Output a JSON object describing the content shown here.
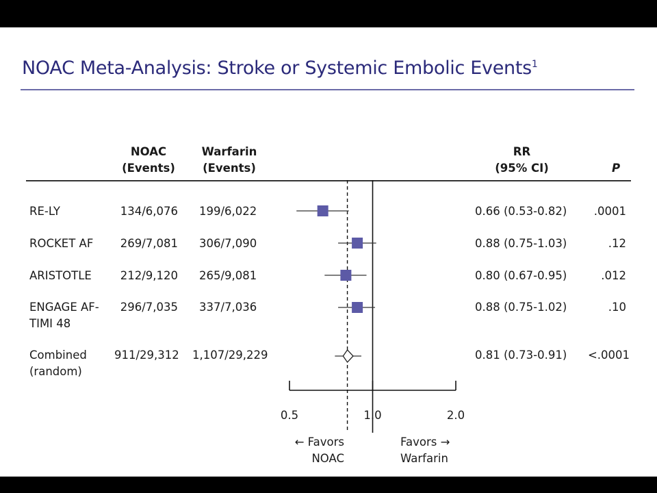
{
  "title": "NOAC Meta-Analysis: Stroke or Systemic Embolic Events",
  "title_sup": "1",
  "headers": {
    "noac_line1": "NOAC",
    "noac_line2": "(Events)",
    "warfarin_line1": "Warfarin",
    "warfarin_line2": "(Events)",
    "rr_line1": "RR",
    "rr_line2": "(95% CI)",
    "p": "P"
  },
  "chart_data": {
    "type": "forest",
    "scale": "log",
    "reference_line": 1.0,
    "pooled_line": 0.81,
    "xlim": [
      0.5,
      2.0
    ],
    "xticks": [
      "0.5",
      "1.0",
      "2.0"
    ],
    "left_label": "← Favors NOAC",
    "right_label": "Favors → Warfarin",
    "rows": [
      {
        "study": "RE-LY",
        "noac": "134/6,076",
        "warfarin": "199/6,022",
        "rr": 0.66,
        "lo": 0.53,
        "hi": 0.82,
        "rr_text": "0.66 (0.53-0.82)",
        "p": ".0001",
        "marker": "square"
      },
      {
        "study": "ROCKET AF",
        "noac": "269/7,081",
        "warfarin": "306/7,090",
        "rr": 0.88,
        "lo": 0.75,
        "hi": 1.03,
        "rr_text": "0.88 (0.75-1.03)",
        "p": ".12",
        "marker": "square"
      },
      {
        "study": "ARISTOTLE",
        "noac": "212/9,120",
        "warfarin": "265/9,081",
        "rr": 0.8,
        "lo": 0.67,
        "hi": 0.95,
        "rr_text": "0.80 (0.67-0.95)",
        "p": ".012",
        "marker": "square"
      },
      {
        "study": "ENGAGE AF-TIMI 48",
        "noac": "296/7,035",
        "warfarin": "337/7,036",
        "rr": 0.88,
        "lo": 0.75,
        "hi": 1.02,
        "rr_text": "0.88 (0.75-1.02)",
        "p": ".10",
        "marker": "square"
      },
      {
        "study": "Combined (random)",
        "noac": "911/29,312",
        "warfarin": "1,107/29,229",
        "rr": 0.81,
        "lo": 0.73,
        "hi": 0.91,
        "rr_text": "0.81 (0.73-0.91)",
        "p": "<.0001",
        "marker": "diamond"
      }
    ]
  },
  "colors": {
    "title": "#2b2a7a",
    "marker": "#5c5aa6",
    "rule": "#6a6aa8"
  }
}
